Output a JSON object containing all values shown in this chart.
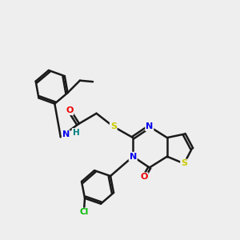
{
  "bg_color": "#eeeeee",
  "bond_color": "#1a1a1a",
  "atom_colors": {
    "N": "#0000ee",
    "O": "#ee0000",
    "S": "#cccc00",
    "Cl": "#00bb00",
    "H": "#008080",
    "C": "#1a1a1a"
  },
  "bond_width": 1.8,
  "dbo": 0.055,
  "figsize": [
    3.0,
    3.0
  ],
  "dpi": 100,
  "xlim": [
    0,
    10
  ],
  "ylim": [
    0,
    10
  ]
}
